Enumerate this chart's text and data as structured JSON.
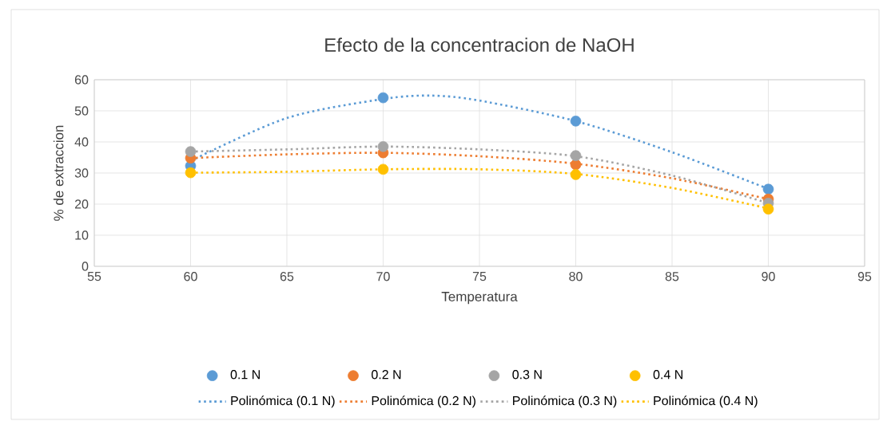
{
  "chart_data": {
    "type": "scatter",
    "title": "Efecto de la concentracion  de NaOH",
    "xlabel": "Temperatura",
    "ylabel": "% de extraccion",
    "x": [
      60,
      70,
      80,
      90
    ],
    "xlim": [
      55,
      95
    ],
    "xticks": [
      55,
      60,
      65,
      70,
      75,
      80,
      85,
      90,
      95
    ],
    "ylim": [
      0,
      60
    ],
    "yticks": [
      0,
      10,
      20,
      30,
      40,
      50,
      60
    ],
    "grid": true,
    "legend": "bottom",
    "series": [
      {
        "name": "0.1 N",
        "marker": "circle",
        "color": "#5b9bd5",
        "values": [
          32.3,
          54.2,
          46.7,
          24.8
        ]
      },
      {
        "name": "0.2 N",
        "marker": "circle",
        "color": "#ed7d31",
        "values": [
          34.8,
          36.5,
          32.7,
          21.6
        ]
      },
      {
        "name": "0.3 N",
        "marker": "circle",
        "color": "#a5a5a5",
        "values": [
          36.9,
          38.5,
          35.6,
          20.3
        ]
      },
      {
        "name": "0.4 N",
        "marker": "circle",
        "color": "#ffc000",
        "values": [
          30.1,
          31.2,
          29.5,
          18.4
        ]
      },
      {
        "name": "Polinómica (0.1 N)",
        "type": "line",
        "marker": "none",
        "line_style": "dotted",
        "color": "#5b9bd5",
        "x": [
          60,
          65,
          70,
          72.5,
          75,
          80,
          85,
          90
        ],
        "values": [
          33.9,
          47.7,
          53.8,
          54.9,
          53.3,
          46.7,
          36.7,
          24.9
        ]
      },
      {
        "name": "Polinómica (0.2 N)",
        "type": "line",
        "marker": "none",
        "line_style": "dotted",
        "color": "#ed7d31",
        "x": [
          60,
          65,
          70,
          75,
          80,
          85,
          90
        ],
        "values": [
          34.8,
          36.0,
          36.5,
          35.4,
          33.0,
          28.3,
          21.6
        ]
      },
      {
        "name": "Polinómica (0.3 N)",
        "type": "line",
        "marker": "none",
        "line_style": "dotted",
        "color": "#a5a5a5",
        "x": [
          60,
          65,
          70,
          75,
          80,
          85,
          90
        ],
        "values": [
          36.9,
          37.6,
          38.5,
          37.6,
          35.4,
          29.2,
          20.3
        ]
      },
      {
        "name": "Polinómica (0.4 N)",
        "type": "line",
        "marker": "none",
        "line_style": "dotted",
        "color": "#ffc000",
        "x": [
          60,
          65,
          70,
          75,
          80,
          85,
          90
        ],
        "values": [
          30.1,
          30.4,
          31.2,
          31.2,
          29.7,
          25.2,
          18.6
        ]
      }
    ]
  }
}
